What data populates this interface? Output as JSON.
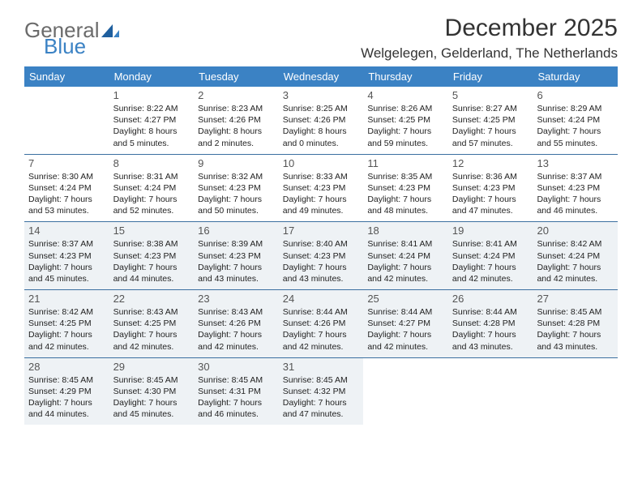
{
  "brand": {
    "part1": "General",
    "part2": "Blue"
  },
  "title": "December 2025",
  "location": "Welgelegen, Gelderland, The Netherlands",
  "colors": {
    "header_bg": "#3b82c4",
    "header_text": "#ffffff",
    "rule": "#3b6fa0",
    "shade_bg": "#eef2f5",
    "page_bg": "#ffffff",
    "logo_gray": "#6b6b6b",
    "logo_blue": "#3b82c4"
  },
  "weekdays": [
    "Sunday",
    "Monday",
    "Tuesday",
    "Wednesday",
    "Thursday",
    "Friday",
    "Saturday"
  ],
  "weeks": [
    [
      {
        "day": "",
        "sunrise": "",
        "sunset": "",
        "daylight": "",
        "shade": false
      },
      {
        "day": "1",
        "sunrise": "8:22 AM",
        "sunset": "4:27 PM",
        "daylight": "8 hours and 5 minutes.",
        "shade": false
      },
      {
        "day": "2",
        "sunrise": "8:23 AM",
        "sunset": "4:26 PM",
        "daylight": "8 hours and 2 minutes.",
        "shade": false
      },
      {
        "day": "3",
        "sunrise": "8:25 AM",
        "sunset": "4:26 PM",
        "daylight": "8 hours and 0 minutes.",
        "shade": false
      },
      {
        "day": "4",
        "sunrise": "8:26 AM",
        "sunset": "4:25 PM",
        "daylight": "7 hours and 59 minutes.",
        "shade": false
      },
      {
        "day": "5",
        "sunrise": "8:27 AM",
        "sunset": "4:25 PM",
        "daylight": "7 hours and 57 minutes.",
        "shade": false
      },
      {
        "day": "6",
        "sunrise": "8:29 AM",
        "sunset": "4:24 PM",
        "daylight": "7 hours and 55 minutes.",
        "shade": false
      }
    ],
    [
      {
        "day": "7",
        "sunrise": "8:30 AM",
        "sunset": "4:24 PM",
        "daylight": "7 hours and 53 minutes.",
        "shade": false
      },
      {
        "day": "8",
        "sunrise": "8:31 AM",
        "sunset": "4:24 PM",
        "daylight": "7 hours and 52 minutes.",
        "shade": false
      },
      {
        "day": "9",
        "sunrise": "8:32 AM",
        "sunset": "4:23 PM",
        "daylight": "7 hours and 50 minutes.",
        "shade": false
      },
      {
        "day": "10",
        "sunrise": "8:33 AM",
        "sunset": "4:23 PM",
        "daylight": "7 hours and 49 minutes.",
        "shade": false
      },
      {
        "day": "11",
        "sunrise": "8:35 AM",
        "sunset": "4:23 PM",
        "daylight": "7 hours and 48 minutes.",
        "shade": false
      },
      {
        "day": "12",
        "sunrise": "8:36 AM",
        "sunset": "4:23 PM",
        "daylight": "7 hours and 47 minutes.",
        "shade": false
      },
      {
        "day": "13",
        "sunrise": "8:37 AM",
        "sunset": "4:23 PM",
        "daylight": "7 hours and 46 minutes.",
        "shade": false
      }
    ],
    [
      {
        "day": "14",
        "sunrise": "8:37 AM",
        "sunset": "4:23 PM",
        "daylight": "7 hours and 45 minutes.",
        "shade": true
      },
      {
        "day": "15",
        "sunrise": "8:38 AM",
        "sunset": "4:23 PM",
        "daylight": "7 hours and 44 minutes.",
        "shade": true
      },
      {
        "day": "16",
        "sunrise": "8:39 AM",
        "sunset": "4:23 PM",
        "daylight": "7 hours and 43 minutes.",
        "shade": true
      },
      {
        "day": "17",
        "sunrise": "8:40 AM",
        "sunset": "4:23 PM",
        "daylight": "7 hours and 43 minutes.",
        "shade": true
      },
      {
        "day": "18",
        "sunrise": "8:41 AM",
        "sunset": "4:24 PM",
        "daylight": "7 hours and 42 minutes.",
        "shade": true
      },
      {
        "day": "19",
        "sunrise": "8:41 AM",
        "sunset": "4:24 PM",
        "daylight": "7 hours and 42 minutes.",
        "shade": true
      },
      {
        "day": "20",
        "sunrise": "8:42 AM",
        "sunset": "4:24 PM",
        "daylight": "7 hours and 42 minutes.",
        "shade": true
      }
    ],
    [
      {
        "day": "21",
        "sunrise": "8:42 AM",
        "sunset": "4:25 PM",
        "daylight": "7 hours and 42 minutes.",
        "shade": true
      },
      {
        "day": "22",
        "sunrise": "8:43 AM",
        "sunset": "4:25 PM",
        "daylight": "7 hours and 42 minutes.",
        "shade": true
      },
      {
        "day": "23",
        "sunrise": "8:43 AM",
        "sunset": "4:26 PM",
        "daylight": "7 hours and 42 minutes.",
        "shade": true
      },
      {
        "day": "24",
        "sunrise": "8:44 AM",
        "sunset": "4:26 PM",
        "daylight": "7 hours and 42 minutes.",
        "shade": true
      },
      {
        "day": "25",
        "sunrise": "8:44 AM",
        "sunset": "4:27 PM",
        "daylight": "7 hours and 42 minutes.",
        "shade": true
      },
      {
        "day": "26",
        "sunrise": "8:44 AM",
        "sunset": "4:28 PM",
        "daylight": "7 hours and 43 minutes.",
        "shade": true
      },
      {
        "day": "27",
        "sunrise": "8:45 AM",
        "sunset": "4:28 PM",
        "daylight": "7 hours and 43 minutes.",
        "shade": true
      }
    ],
    [
      {
        "day": "28",
        "sunrise": "8:45 AM",
        "sunset": "4:29 PM",
        "daylight": "7 hours and 44 minutes.",
        "shade": true
      },
      {
        "day": "29",
        "sunrise": "8:45 AM",
        "sunset": "4:30 PM",
        "daylight": "7 hours and 45 minutes.",
        "shade": true
      },
      {
        "day": "30",
        "sunrise": "8:45 AM",
        "sunset": "4:31 PM",
        "daylight": "7 hours and 46 minutes.",
        "shade": true
      },
      {
        "day": "31",
        "sunrise": "8:45 AM",
        "sunset": "4:32 PM",
        "daylight": "7 hours and 47 minutes.",
        "shade": true
      },
      {
        "day": "",
        "sunrise": "",
        "sunset": "",
        "daylight": "",
        "shade": false
      },
      {
        "day": "",
        "sunrise": "",
        "sunset": "",
        "daylight": "",
        "shade": false
      },
      {
        "day": "",
        "sunrise": "",
        "sunset": "",
        "daylight": "",
        "shade": false
      }
    ]
  ],
  "labels": {
    "sunrise": "Sunrise:",
    "sunset": "Sunset:",
    "daylight": "Daylight:"
  }
}
